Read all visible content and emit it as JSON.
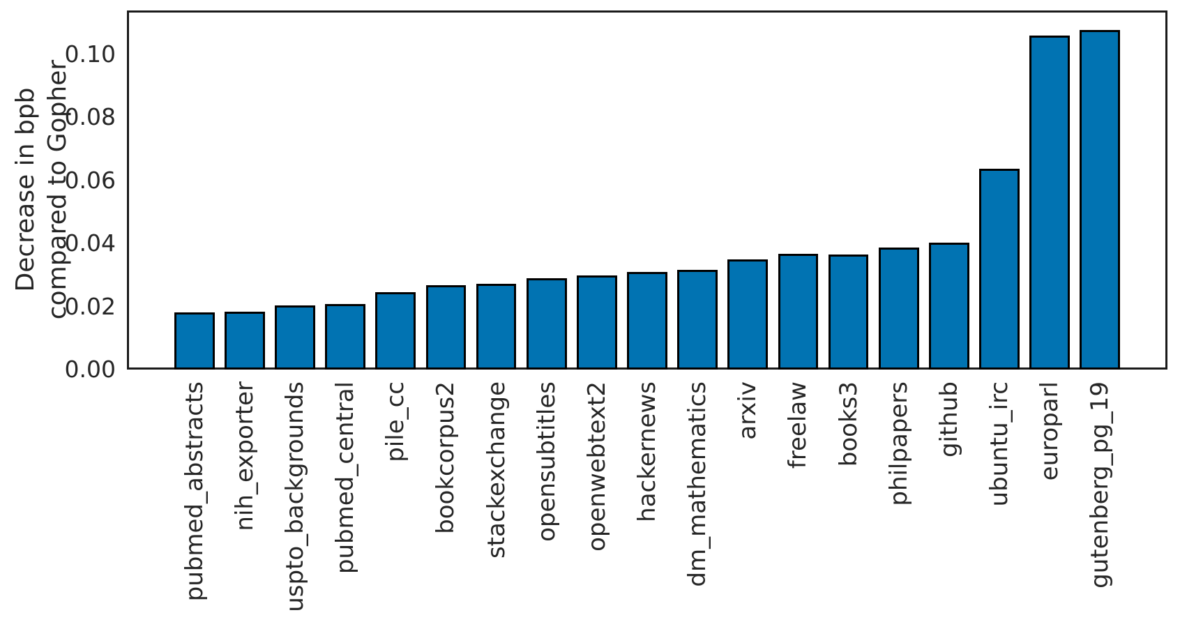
{
  "chart_data": {
    "type": "bar",
    "title": "",
    "xlabel": "",
    "ylabel_lines": [
      "Decrease in bpb",
      "compared to Gopher"
    ],
    "categories": [
      "pubmed_abstracts",
      "nih_exporter",
      "uspto_backgrounds",
      "pubmed_central",
      "pile_cc",
      "bookcorpus2",
      "stackexchange",
      "opensubtitles",
      "openwebtext2",
      "hackernews",
      "dm_mathematics",
      "arxiv",
      "freelaw",
      "books3",
      "philpapers",
      "github",
      "ubuntu_irc",
      "europarl",
      "gutenberg_pg_19"
    ],
    "values": [
      0.0181,
      0.0184,
      0.0204,
      0.0209,
      0.0246,
      0.0267,
      0.0272,
      0.029,
      0.0299,
      0.031,
      0.0316,
      0.035,
      0.0367,
      0.0366,
      0.0387,
      0.0402,
      0.0636,
      0.106,
      0.1078
    ],
    "ytick_labels": [
      "0.00",
      "0.02",
      "0.04",
      "0.06",
      "0.08",
      "0.10"
    ],
    "ytick_values": [
      0.0,
      0.02,
      0.04,
      0.06,
      0.08,
      0.1
    ],
    "ylim": [
      0,
      0.1139
    ],
    "grid": false,
    "legend": null,
    "bar_color": "#0173b2",
    "bar_edge_color": "#000000",
    "text_color": "#262626",
    "spine_color": "#1a1a1a",
    "background_color": "#ffffff"
  }
}
